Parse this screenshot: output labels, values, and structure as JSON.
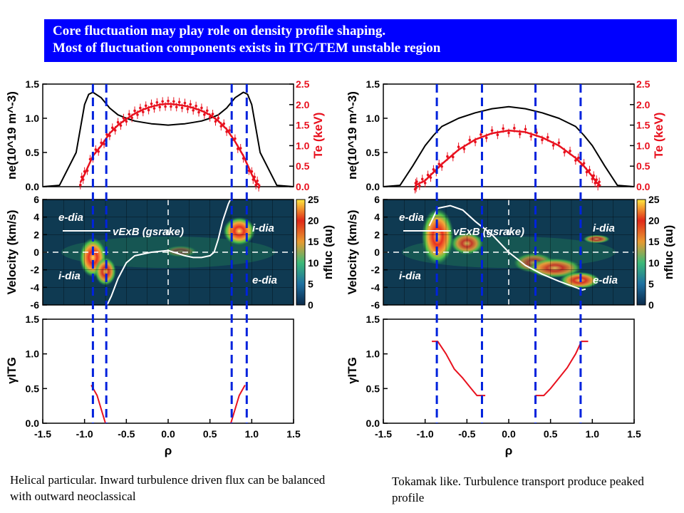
{
  "banner": {
    "line1": "Core fluctuation may play role on density profile shaping.",
    "line2": "Most of fluctuation components exists in ITG/TEM unstable region"
  },
  "captions": {
    "left": "Helical particular. Inward turbulence driven flux can be balanced with outward neoclassical",
    "right": "Tokamak like. Turbulence transport produce peaked profile"
  },
  "colors": {
    "banner": "#0000ff",
    "te": "#e8111e",
    "ne": "#000000",
    "vlines": "#0022dd",
    "spectrogram_bg": "#0f3a52"
  },
  "chart_data": [
    {
      "type": "line",
      "panel": "left-top",
      "ylabel": "ne(10^19 m^-3)",
      "ylabel_right": "Te (keV)",
      "xlim": [
        -1.5,
        1.5
      ],
      "ylim": [
        0,
        1.5
      ],
      "ylim_right": [
        0,
        2.5
      ],
      "yticks": [
        0.0,
        0.5,
        1.0,
        1.5
      ],
      "yticks_right": [
        0.0,
        0.5,
        1.0,
        1.5,
        2.0,
        2.5
      ],
      "series": [
        {
          "key": "ne",
          "x": [
            -1.5,
            -1.3,
            -1.1,
            -1.0,
            -0.95,
            -0.9,
            -0.8,
            -0.7,
            -0.6,
            -0.5,
            -0.4,
            -0.3,
            -0.2,
            -0.1,
            0.0,
            0.1,
            0.2,
            0.3,
            0.4,
            0.5,
            0.6,
            0.7,
            0.8,
            0.9,
            0.95,
            1.0,
            1.1,
            1.3,
            1.5
          ],
          "y": [
            0.0,
            0.02,
            0.5,
            1.2,
            1.35,
            1.38,
            1.3,
            1.15,
            1.05,
            1.0,
            0.96,
            0.94,
            0.92,
            0.91,
            0.9,
            0.91,
            0.92,
            0.94,
            0.96,
            1.0,
            1.05,
            1.15,
            1.3,
            1.38,
            1.35,
            1.2,
            0.5,
            0.02,
            0.0
          ]
        },
        {
          "key": "te",
          "x": [
            -1.05,
            -1.0,
            -0.9,
            -0.8,
            -0.7,
            -0.6,
            -0.5,
            -0.4,
            -0.3,
            -0.2,
            -0.1,
            0.0,
            0.1,
            0.2,
            0.3,
            0.4,
            0.5,
            0.6,
            0.7,
            0.8,
            0.9,
            1.0,
            1.05,
            1.1
          ],
          "y": [
            0.1,
            0.3,
            0.75,
            1.0,
            1.3,
            1.5,
            1.65,
            1.78,
            1.88,
            1.95,
            2.0,
            2.02,
            2.0,
            1.97,
            1.92,
            1.85,
            1.75,
            1.6,
            1.4,
            1.1,
            0.75,
            0.3,
            0.1,
            0.02
          ]
        }
      ]
    },
    {
      "type": "heatmap",
      "panel": "left-middle",
      "ylabel": "Velocity (km/s)",
      "colorbar_label": "nfluc (au)",
      "colorbar_ticks": [
        0,
        5,
        10,
        15,
        20,
        25
      ],
      "ylim": [
        -6,
        6
      ],
      "yticks": [
        -6,
        -4,
        -2,
        0,
        2,
        4,
        6
      ],
      "annotations": {
        "tl": "e-dia",
        "bl": "i-dia",
        "tr": "i-dia",
        "br": "e-dia",
        "exb": "vExB (gsrake)"
      },
      "exb": {
        "x": [
          -0.73,
          -0.68,
          -0.6,
          -0.5,
          -0.4,
          -0.3,
          -0.2,
          -0.1,
          0.0,
          0.1,
          0.2,
          0.3,
          0.4,
          0.5,
          0.55,
          0.6,
          0.65,
          0.72,
          0.77
        ],
        "y": [
          -6,
          -5,
          -3,
          -1.2,
          -0.4,
          -0.2,
          0.0,
          0.1,
          0.2,
          -0.1,
          -0.4,
          -0.6,
          -0.6,
          -0.4,
          0.0,
          1.5,
          3.5,
          5.5,
          6.5
        ]
      },
      "blobs": [
        {
          "x": -0.9,
          "y": -0.6,
          "rx": 0.1,
          "ry": 1.4,
          "level": 22
        },
        {
          "x": -0.75,
          "y": -2.2,
          "rx": 0.08,
          "ry": 1.0,
          "level": 20
        },
        {
          "x": 0.85,
          "y": 2.4,
          "rx": 0.12,
          "ry": 1.0,
          "level": 22
        },
        {
          "x": 0.15,
          "y": 0.1,
          "rx": 0.12,
          "ry": 0.4,
          "level": 8
        }
      ]
    },
    {
      "type": "line",
      "panel": "left-bottom",
      "ylabel": "γITG",
      "xlabel": "ρ",
      "xlim": [
        -1.5,
        1.5
      ],
      "ylim": [
        0,
        1.5
      ],
      "yticks": [
        0.0,
        0.5,
        1.0,
        1.5
      ],
      "xticks": [
        -1.5,
        -1.0,
        -0.5,
        0.0,
        0.5,
        1.0,
        1.5
      ],
      "series": [
        {
          "key": "gamma_left",
          "x": [
            -0.92,
            -0.85,
            -0.8,
            -0.75
          ],
          "y": [
            0.55,
            0.4,
            0.2,
            0.0
          ]
        },
        {
          "key": "gamma_right",
          "x": [
            0.75,
            0.8,
            0.85,
            0.92
          ],
          "y": [
            0.0,
            0.2,
            0.4,
            0.55
          ]
        }
      ],
      "vlines": [
        -0.9,
        -0.74,
        0.76,
        0.94
      ]
    },
    {
      "type": "line",
      "panel": "right-top",
      "ylabel": "ne(10^19 m^-3)",
      "ylabel_right": "Te (keV)",
      "xlim": [
        -1.5,
        1.5
      ],
      "ylim": [
        0,
        1.5
      ],
      "ylim_right": [
        0,
        2.5
      ],
      "yticks": [
        0.0,
        0.5,
        1.0,
        1.5
      ],
      "yticks_right": [
        0.0,
        0.5,
        1.0,
        1.5,
        2.0,
        2.5
      ],
      "series": [
        {
          "key": "ne",
          "x": [
            -1.5,
            -1.3,
            -1.15,
            -1.0,
            -0.9,
            -0.8,
            -0.6,
            -0.4,
            -0.2,
            0.0,
            0.2,
            0.4,
            0.6,
            0.8,
            0.9,
            1.0,
            1.15,
            1.3,
            1.5
          ],
          "y": [
            0.0,
            0.02,
            0.3,
            0.6,
            0.75,
            0.88,
            1.0,
            1.08,
            1.14,
            1.17,
            1.14,
            1.08,
            1.0,
            0.88,
            0.75,
            0.6,
            0.3,
            0.02,
            0.0
          ]
        },
        {
          "key": "te",
          "x": [
            -1.12,
            -1.1,
            -1.0,
            -0.9,
            -0.8,
            -0.6,
            -0.4,
            -0.2,
            0.0,
            0.2,
            0.4,
            0.6,
            0.8,
            0.9,
            1.0,
            1.05,
            1.1
          ],
          "y": [
            0.0,
            0.05,
            0.15,
            0.35,
            0.55,
            0.9,
            1.15,
            1.3,
            1.37,
            1.33,
            1.2,
            1.0,
            0.7,
            0.5,
            0.25,
            0.1,
            0.02
          ]
        }
      ]
    },
    {
      "type": "heatmap",
      "panel": "right-middle",
      "ylabel": "Velocity (km/s)",
      "colorbar_label": "nfluc (au)",
      "colorbar_ticks": [
        0,
        5,
        10,
        15,
        20,
        25
      ],
      "ylim": [
        -6,
        6
      ],
      "yticks": [
        -6,
        -4,
        -2,
        0,
        2,
        4,
        6
      ],
      "annotations": {
        "tl": "e-dia",
        "bl": "i-dia",
        "tr": "i-dia",
        "br": "e-dia",
        "exb": "vExB (gsrake)"
      },
      "exb": {
        "x": [
          -0.95,
          -0.85,
          -0.7,
          -0.55,
          -0.4,
          -0.2,
          0.0,
          0.2,
          0.4,
          0.6,
          0.8,
          0.88,
          0.92
        ],
        "y": [
          3.0,
          5.0,
          5.3,
          4.8,
          3.5,
          2.0,
          0.0,
          -1.5,
          -2.5,
          -3.3,
          -4.0,
          -4.3,
          -4.2
        ]
      },
      "blobs": [
        {
          "x": -0.85,
          "y": 1.8,
          "rx": 0.12,
          "ry": 2.0,
          "level": 22
        },
        {
          "x": -0.5,
          "y": 1.0,
          "rx": 0.12,
          "ry": 0.8,
          "level": 18
        },
        {
          "x": 0.3,
          "y": -1.2,
          "rx": 0.15,
          "ry": 0.7,
          "level": 14
        },
        {
          "x": 0.55,
          "y": -1.8,
          "rx": 0.2,
          "ry": 0.7,
          "level": 18
        },
        {
          "x": 0.85,
          "y": -3.2,
          "rx": 0.15,
          "ry": 0.6,
          "level": 20
        },
        {
          "x": 1.05,
          "y": 1.5,
          "rx": 0.1,
          "ry": 0.3,
          "level": 16
        }
      ]
    },
    {
      "type": "line",
      "panel": "right-bottom",
      "ylabel": "γITG",
      "xlabel": "ρ",
      "xlim": [
        -1.5,
        1.5
      ],
      "ylim": [
        0,
        1.5
      ],
      "yticks": [
        0.0,
        0.5,
        1.0,
        1.5
      ],
      "xticks": [
        -1.5,
        -1.0,
        -0.5,
        0.0,
        0.5,
        1.0,
        1.5
      ],
      "series": [
        {
          "key": "gamma_left",
          "x": [
            -0.92,
            -0.85,
            -0.75,
            -0.65,
            -0.55,
            -0.45,
            -0.38,
            -0.28
          ],
          "y": [
            1.18,
            1.18,
            1.0,
            0.78,
            0.65,
            0.5,
            0.4,
            0.4
          ]
        },
        {
          "key": "gamma_right",
          "x": [
            0.32,
            0.42,
            0.5,
            0.6,
            0.7,
            0.8,
            0.87,
            0.95
          ],
          "y": [
            0.4,
            0.4,
            0.5,
            0.65,
            0.8,
            1.0,
            1.18,
            1.18
          ]
        }
      ],
      "vlines": [
        -0.86,
        -0.32,
        0.32,
        0.86
      ]
    }
  ]
}
